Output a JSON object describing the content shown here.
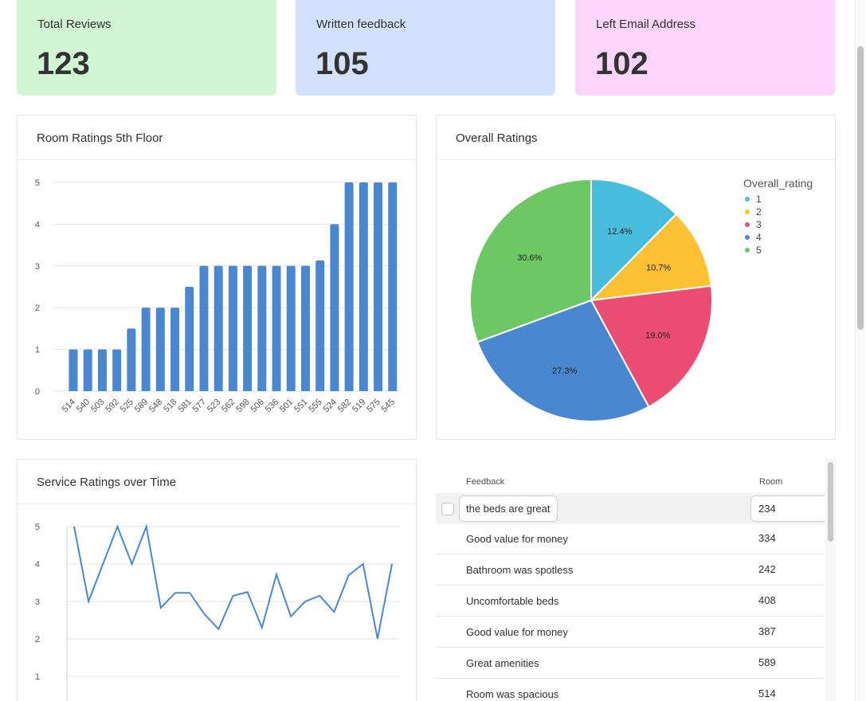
{
  "stats": [
    {
      "label": "Total Reviews",
      "value": "123",
      "color": "#d2f5d4"
    },
    {
      "label": "Written feedback",
      "value": "105",
      "color": "#d3e2fc"
    },
    {
      "label": "Left Email Address",
      "value": "102",
      "color": "#fcd4fc"
    }
  ],
  "room_chart": {
    "title": "Room Ratings 5th Floor",
    "chart_data": {
      "type": "bar",
      "categories": [
        "514",
        "540",
        "503",
        "592",
        "525",
        "589",
        "548",
        "518",
        "581",
        "577",
        "523",
        "562",
        "598",
        "506",
        "536",
        "501",
        "551",
        "555",
        "524",
        "582",
        "519",
        "575",
        "545"
      ],
      "values": [
        1,
        1,
        1,
        1,
        1.5,
        2,
        2,
        2,
        2.5,
        3,
        3,
        3,
        3,
        3,
        3,
        3,
        3,
        3.13,
        4,
        5,
        5,
        5,
        5
      ],
      "ylim": [
        0,
        5
      ],
      "yticks": [
        "0",
        "1",
        "2",
        "3",
        "4",
        "5"
      ],
      "bar_color": "#4a87d1",
      "grid": true
    }
  },
  "pie_chart": {
    "title": "Overall Ratings",
    "chart_data": {
      "type": "pie",
      "legend_title": "Overall_rating",
      "legend_position": "top-right",
      "slices": [
        {
          "name": "1",
          "value": 12.4,
          "label": "12.4%",
          "color": "#47bcdc"
        },
        {
          "name": "2",
          "value": 10.7,
          "label": "10.7%",
          "color": "#fdc133"
        },
        {
          "name": "3",
          "value": 19.0,
          "label": "19.0%",
          "color": "#ea4c72"
        },
        {
          "name": "4",
          "value": 27.3,
          "label": "27.3%",
          "color": "#4a87d1"
        },
        {
          "name": "5",
          "value": 30.6,
          "label": "30.6%",
          "color": "#6ec765"
        }
      ]
    }
  },
  "service_chart": {
    "title": "Service Ratings over Time",
    "chart_data": {
      "type": "line",
      "values": [
        5,
        3,
        4,
        5,
        4,
        5,
        2.83,
        3.23,
        3.23,
        2.67,
        2.26,
        3.15,
        3.25,
        2.3,
        3.72,
        2.6,
        3.0,
        3.15,
        2.72,
        3.7,
        4.0,
        2.0,
        4.0
      ],
      "ylim": [
        0,
        5
      ],
      "yticks": [
        "1",
        "2",
        "3",
        "4",
        "5"
      ],
      "line_color": "#4a87d1",
      "grid": true
    }
  },
  "feedback_table": {
    "headers": {
      "feedback": "Feedback",
      "room": "Room"
    },
    "rows": [
      {
        "feedback": "the beds are great",
        "room": "234"
      },
      {
        "feedback": "Good value for money",
        "room": "334"
      },
      {
        "feedback": "Bathroom was spotless",
        "room": "242"
      },
      {
        "feedback": "Uncomfortable beds",
        "room": "408"
      },
      {
        "feedback": "Good value for money",
        "room": "387"
      },
      {
        "feedback": "Great amenities",
        "room": "589"
      },
      {
        "feedback": "Room was spacious",
        "room": "514"
      }
    ]
  }
}
